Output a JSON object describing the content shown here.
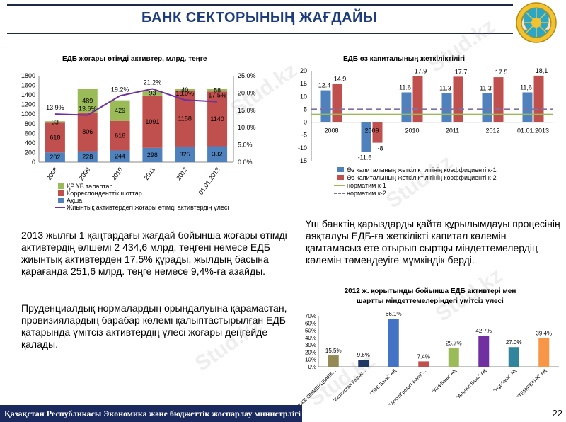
{
  "header": {
    "title": "БАНК СЕКТОРЫНЫҢ ЖАҒДАЙЫ",
    "emblem_icon": "kazakhstan-emblem-icon"
  },
  "footer": {
    "text": "Қазақстан Республикасы Экономика және бюджеттік жоспарлау министрлігі",
    "page_number": "22",
    "color": "#1a2a5e"
  },
  "watermark": {
    "text": "Stud.kz"
  },
  "text_blocks": {
    "liquid_assets_note": "2013 жылғы 1 қаңтардағы жағдай бойынша жоғары өтімді активтердің өлшемі 2 434,6 млрд. теңгені немесе ЕДБ жиынтық активтерден 17,5% құрады, жылдың басына қарағанда 251,6 млрд. теңге немесе 9,4%-ға азайды.",
    "prudential_note": "Пруденциалдық нормалардың орындалуына қарамастан, провизиялардың барабар көлемі қалыптастырылған ЕДБ қатарында үмітсіз активтердің үлесі жоғары деңгейде қалады.",
    "restructuring_note": "Үш банктің қарыздарды қайта құрылымдауы процесінің аяқталуы ЕДБ-ға жеткілікті капитал көлемін қамтамасыз ете отырып сыртқы міндеттемелердің көлемін төмендеуіге мүмкіндік берді."
  },
  "chart_data": [
    {
      "id": "liquid_assets",
      "type": "bar",
      "stacked": true,
      "title": "ЕДБ жоғары өтімді активтер, млрд. теңге",
      "categories": [
        "2008",
        "2009",
        "2010",
        "2011",
        "2012",
        "01.01.2013"
      ],
      "series": [
        {
          "name": "Ақша",
          "values": [
            202,
            228,
            244,
            298,
            325,
            332
          ],
          "color": "#4f81bd",
          "labels": [
            "202",
            "228",
            "244",
            "298",
            "325",
            "332"
          ]
        },
        {
          "name": "Корреспонденттік шоттар",
          "values": [
            618,
            806,
            616,
            1091,
            1158,
            1140
          ],
          "color": "#c0504d",
          "labels": [
            "618",
            "806",
            "616",
            "1091",
            "1158",
            "1140"
          ]
        },
        {
          "name": "ҚР ҰБ талаптар",
          "values": [
            33,
            489,
            429,
            93,
            40,
            58
          ],
          "color": "#9bbb59",
          "labels": [
            "33",
            "489",
            "429",
            "93",
            "40",
            "58"
          ]
        }
      ],
      "line_series": {
        "name": "Жиынтық активтердегі жоғары өтімді активтердің үлесі",
        "values": [
          13.9,
          13.6,
          19.2,
          21.2,
          18.0,
          17.5
        ],
        "labels": [
          "13.9%",
          "13.6%",
          "19.2%",
          "21.2%",
          "18.0%",
          "17.5%"
        ],
        "color": "#7030a0"
      },
      "ylim": [
        0,
        1800
      ],
      "yticks": [
        "0",
        "200",
        "400",
        "600",
        "800",
        "1000",
        "1200",
        "1400",
        "1600",
        "1800"
      ],
      "y2lim": [
        0,
        25
      ],
      "y2ticks": [
        "0.0%",
        "5.0%",
        "10.0%",
        "15.0%",
        "20.0%",
        "25.0%"
      ],
      "legend": "bottom"
    },
    {
      "id": "capital_adequacy",
      "type": "bar",
      "title": "ЕДБ өз капиталының жеткіліктілігі",
      "categories": [
        "2008",
        "2009",
        "2010",
        "2011",
        "2012",
        "01.01.2013"
      ],
      "series": [
        {
          "name": "Өз капиталының жеткіліктілігінің коэффициенті к-1",
          "values": [
            12.4,
            -11.6,
            11.6,
            11.3,
            11.3,
            11.6
          ],
          "color": "#4f81bd",
          "labels": [
            "12.4",
            "-11.6",
            "11.6",
            "11.3",
            "11,3",
            "11,6"
          ]
        },
        {
          "name": "Өз капиталының жеткіліктілігінің коэффициенті к-2",
          "values": [
            14.9,
            -8,
            17.9,
            17.7,
            17.5,
            18.1
          ],
          "color": "#c0504d",
          "labels": [
            "14.9",
            "-8",
            "17.9",
            "17.7",
            "17.5",
            "18,1"
          ]
        }
      ],
      "reference_lines": [
        {
          "name": "норматим к-1",
          "value": 3,
          "color": "#9bbb59",
          "style": "solid"
        },
        {
          "name": "норматим к-2",
          "value": 5,
          "color": "#7f6fa8",
          "style": "dashed"
        }
      ],
      "ylim": [
        -15,
        20
      ],
      "yticks": [
        "-15",
        "-10",
        "-5",
        "0",
        "5",
        "10",
        "15",
        "20"
      ],
      "legend": "bottom"
    },
    {
      "id": "bad_assets",
      "type": "bar",
      "title": [
        "2012 ж. қорытынды бойынша ЕДБ активтері мен",
        "шартты міндеттемелеріндегі үмітсіз үлесі"
      ],
      "categories": [
        "\"КАЗКОММЕРЦБАНК...",
        "\"Казахстан Казын...",
        "\"ТФБ Банкі\" АҚ",
        "\"ЦентрКредит Банкі\"...",
        "\"АТФБанк\" АҚ",
        "\"Альянс Банк\" АҚ",
        "\"Нұрбанк\" АҚ",
        "\"ТЕМІРБАНК\" АҚ"
      ],
      "values": [
        15.5,
        9.6,
        66.1,
        7.4,
        25.7,
        42.7,
        27.0,
        39.4
      ],
      "labels": [
        "15.5%",
        "9.6%",
        "66.1%",
        "7.4%",
        "25.7%",
        "42.7%",
        "27.0%",
        "39.4%"
      ],
      "colors": [
        "#948a54",
        "#1f3864",
        "#4472c4",
        "#c0504d",
        "#9bbb59",
        "#7030a0",
        "#31859c",
        "#f79646"
      ],
      "ylim": [
        0,
        70
      ],
      "yticks": [
        "0%",
        "10%",
        "20%",
        "30%",
        "40%",
        "50%",
        "60%",
        "70%"
      ]
    }
  ]
}
